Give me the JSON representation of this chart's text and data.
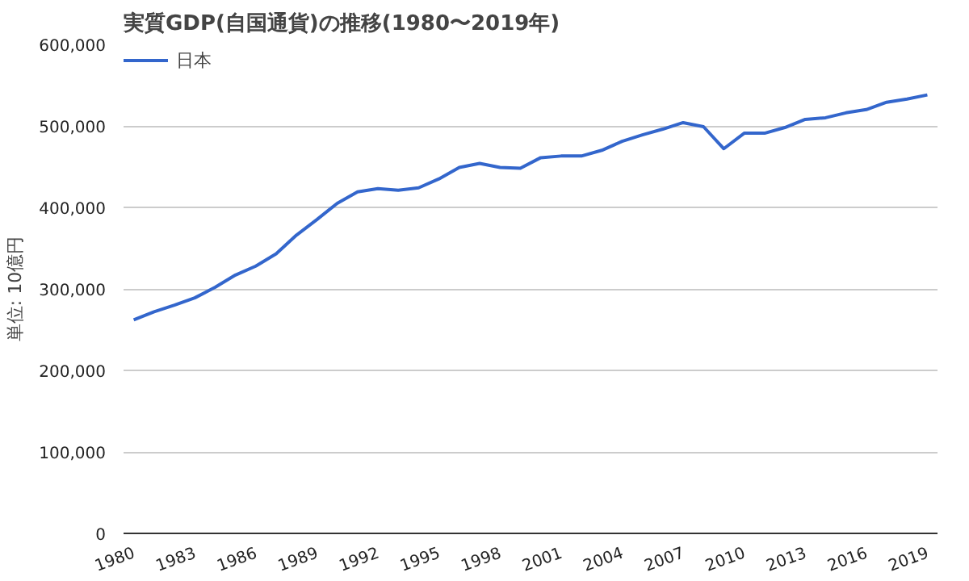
{
  "chart_data": {
    "type": "line",
    "title": "実質GDP(自国通貨)の推移(1980〜2019年)",
    "ylabel": "単位: 10億円",
    "x": [
      1980,
      1981,
      1982,
      1983,
      1984,
      1985,
      1986,
      1987,
      1988,
      1989,
      1990,
      1991,
      1992,
      1993,
      1994,
      1995,
      1996,
      1997,
      1998,
      1999,
      2000,
      2001,
      2002,
      2003,
      2004,
      2005,
      2006,
      2007,
      2008,
      2009,
      2010,
      2011,
      2012,
      2013,
      2014,
      2015,
      2016,
      2017,
      2018,
      2019
    ],
    "series": [
      {
        "name": "日本",
        "color": "#3366cc",
        "values": [
          262000,
          272000,
          280000,
          289000,
          302000,
          317000,
          328000,
          343000,
          366000,
          385000,
          405000,
          419000,
          423000,
          421000,
          424000,
          435000,
          449000,
          454000,
          449000,
          448000,
          461000,
          463000,
          463000,
          470000,
          481000,
          489000,
          496000,
          504000,
          499000,
          472000,
          491000,
          491000,
          498000,
          508000,
          510000,
          516000,
          520000,
          529000,
          533000,
          538000
        ]
      }
    ],
    "xlim": [
      1979.5,
      2019.5
    ],
    "xticks": [
      1980,
      1983,
      1986,
      1989,
      1992,
      1995,
      1998,
      2001,
      2004,
      2007,
      2010,
      2013,
      2016,
      2019
    ],
    "ylim": [
      0,
      600000
    ],
    "yticks": [
      {
        "value": 0,
        "label": "0"
      },
      {
        "value": 100000,
        "label": "100,000"
      },
      {
        "value": 200000,
        "label": "200,000"
      },
      {
        "value": 300000,
        "label": "300,000"
      },
      {
        "value": 400000,
        "label": "400,000"
      },
      {
        "value": 500000,
        "label": "500,000"
      },
      {
        "value": 600000,
        "label": "600,000"
      }
    ],
    "grid": "y",
    "legend": "top left",
    "marker": "none",
    "line_style": "solid"
  }
}
